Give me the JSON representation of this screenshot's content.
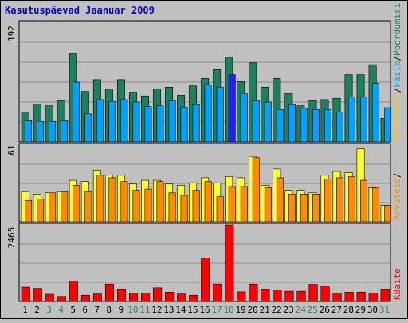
{
  "title": "Kasutuspäevad Jaanuar 2009",
  "colors": {
    "background": "#c0c0c0",
    "plot_bg": "#c0c0c0",
    "grid": "#8a8a8a",
    "title": "#0000c8",
    "pages": "#1e7f5e",
    "files": "#00a0ff",
    "files_highlight": "#2020ff",
    "visits": "#ff8c00",
    "visits_highlight": "#ffd000",
    "hits_day_highlight": "#ffff33",
    "kbytes": "#ff0000",
    "weekend_label": "#2a8a4a"
  },
  "legend": {
    "top_pages": "Pöördumisi",
    "top_sep": "/",
    "top_files": "Faile",
    "top_visits_sep": "/",
    "top_visits": "Külastusi",
    "mid_sep": "/",
    "mid_label": "Arvuteid",
    "bottom_label": "KBaite"
  },
  "chart_data": [
    {
      "type": "bar",
      "title": "Kasutuspäevad Jaanuar 2009",
      "ymax_label": "192",
      "categories": [
        "1",
        "2",
        "3",
        "4",
        "5",
        "6",
        "7",
        "8",
        "9",
        "10",
        "11",
        "12",
        "13",
        "14",
        "15",
        "16",
        "17",
        "18",
        "19",
        "20",
        "21",
        "22",
        "23",
        "24",
        "25",
        "26",
        "27",
        "28",
        "29",
        "30",
        "31"
      ],
      "weekend_days": [
        "3",
        "4",
        "10",
        "11",
        "17",
        "18",
        "24",
        "25",
        "31"
      ],
      "series": [
        {
          "name": "Pöördumisi",
          "values": [
            48,
            61,
            58,
            66,
            142,
            81,
            100,
            85,
            100,
            80,
            74,
            85,
            88,
            75,
            90,
            102,
            116,
            136,
            97,
            127,
            88,
            102,
            78,
            58,
            66,
            68,
            70,
            108,
            108,
            124,
            38
          ]
        },
        {
          "name": "Faile",
          "values": [
            34,
            33,
            33,
            34,
            96,
            45,
            68,
            65,
            68,
            64,
            57,
            58,
            66,
            56,
            60,
            92,
            88,
            108,
            78,
            66,
            64,
            52,
            60,
            54,
            52,
            52,
            48,
            72,
            72,
            94,
            55
          ]
        }
      ]
    },
    {
      "type": "bar",
      "ymax_label": "61",
      "categories": [
        "1",
        "2",
        "3",
        "4",
        "5",
        "6",
        "7",
        "8",
        "9",
        "10",
        "11",
        "12",
        "13",
        "14",
        "15",
        "16",
        "17",
        "18",
        "19",
        "20",
        "21",
        "22",
        "23",
        "24",
        "25",
        "26",
        "27",
        "28",
        "29",
        "30",
        "31"
      ],
      "series": [
        {
          "name": "Külastusi",
          "values": [
            24,
            22,
            23,
            24,
            33,
            32,
            41,
            37,
            37,
            30,
            33,
            33,
            30,
            29,
            31,
            35,
            31,
            36,
            35,
            52,
            29,
            42,
            25,
            25,
            23,
            37,
            40,
            39,
            58,
            27,
            13
          ]
        },
        {
          "name": "Arvuteid",
          "values": [
            17,
            18,
            23,
            24,
            29,
            24,
            37,
            35,
            32,
            25,
            26,
            32,
            23,
            21,
            25,
            32,
            20,
            28,
            28,
            51,
            27,
            35,
            22,
            22,
            22,
            34,
            35,
            36,
            33,
            27,
            13
          ]
        }
      ]
    },
    {
      "type": "bar",
      "ymax_label": "2465",
      "categories": [
        "1",
        "2",
        "3",
        "4",
        "5",
        "6",
        "7",
        "8",
        "9",
        "10",
        "11",
        "12",
        "13",
        "14",
        "15",
        "16",
        "17",
        "18",
        "19",
        "20",
        "21",
        "22",
        "23",
        "24",
        "25",
        "26",
        "27",
        "28",
        "29",
        "30",
        "31"
      ],
      "series": [
        {
          "name": "KBaite",
          "values": [
            460,
            420,
            230,
            160,
            650,
            200,
            240,
            560,
            400,
            270,
            270,
            440,
            300,
            240,
            200,
            1400,
            560,
            2465,
            310,
            560,
            400,
            370,
            330,
            330,
            550,
            500,
            270,
            300,
            300,
            270,
            400
          ]
        }
      ]
    }
  ]
}
